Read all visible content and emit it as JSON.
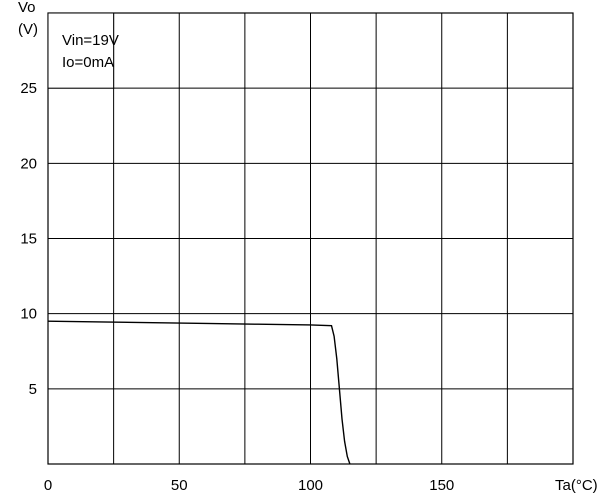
{
  "chart_data": {
    "type": "line",
    "title": "",
    "ylabel_lines": [
      "Vo",
      "(V)"
    ],
    "xlabel": "Ta(°C)",
    "xlim": [
      0,
      200
    ],
    "ylim": [
      0,
      30
    ],
    "x_gridlines": [
      0,
      25,
      50,
      75,
      100,
      125,
      150,
      175,
      200
    ],
    "y_gridlines": [
      0,
      5,
      10,
      15,
      20,
      25,
      30
    ],
    "x_tick_values": [
      0,
      50,
      100,
      150
    ],
    "x_tick_labels": [
      "0",
      "50",
      "100",
      "150"
    ],
    "y_tick_values": [
      5,
      10,
      15,
      20,
      25
    ],
    "y_tick_labels": [
      "5",
      "10",
      "15",
      "20",
      "25"
    ],
    "annotations": [
      "Vin=19V",
      "Io=0mA"
    ],
    "grid": true,
    "series": [
      {
        "x": [
          0,
          20,
          40,
          60,
          80,
          100,
          108,
          109,
          110,
          111,
          112,
          113,
          114,
          115
        ],
        "y": [
          9.5,
          9.45,
          9.4,
          9.35,
          9.3,
          9.25,
          9.2,
          8.5,
          7.0,
          5.0,
          3.0,
          1.5,
          0.5,
          0
        ]
      }
    ]
  }
}
